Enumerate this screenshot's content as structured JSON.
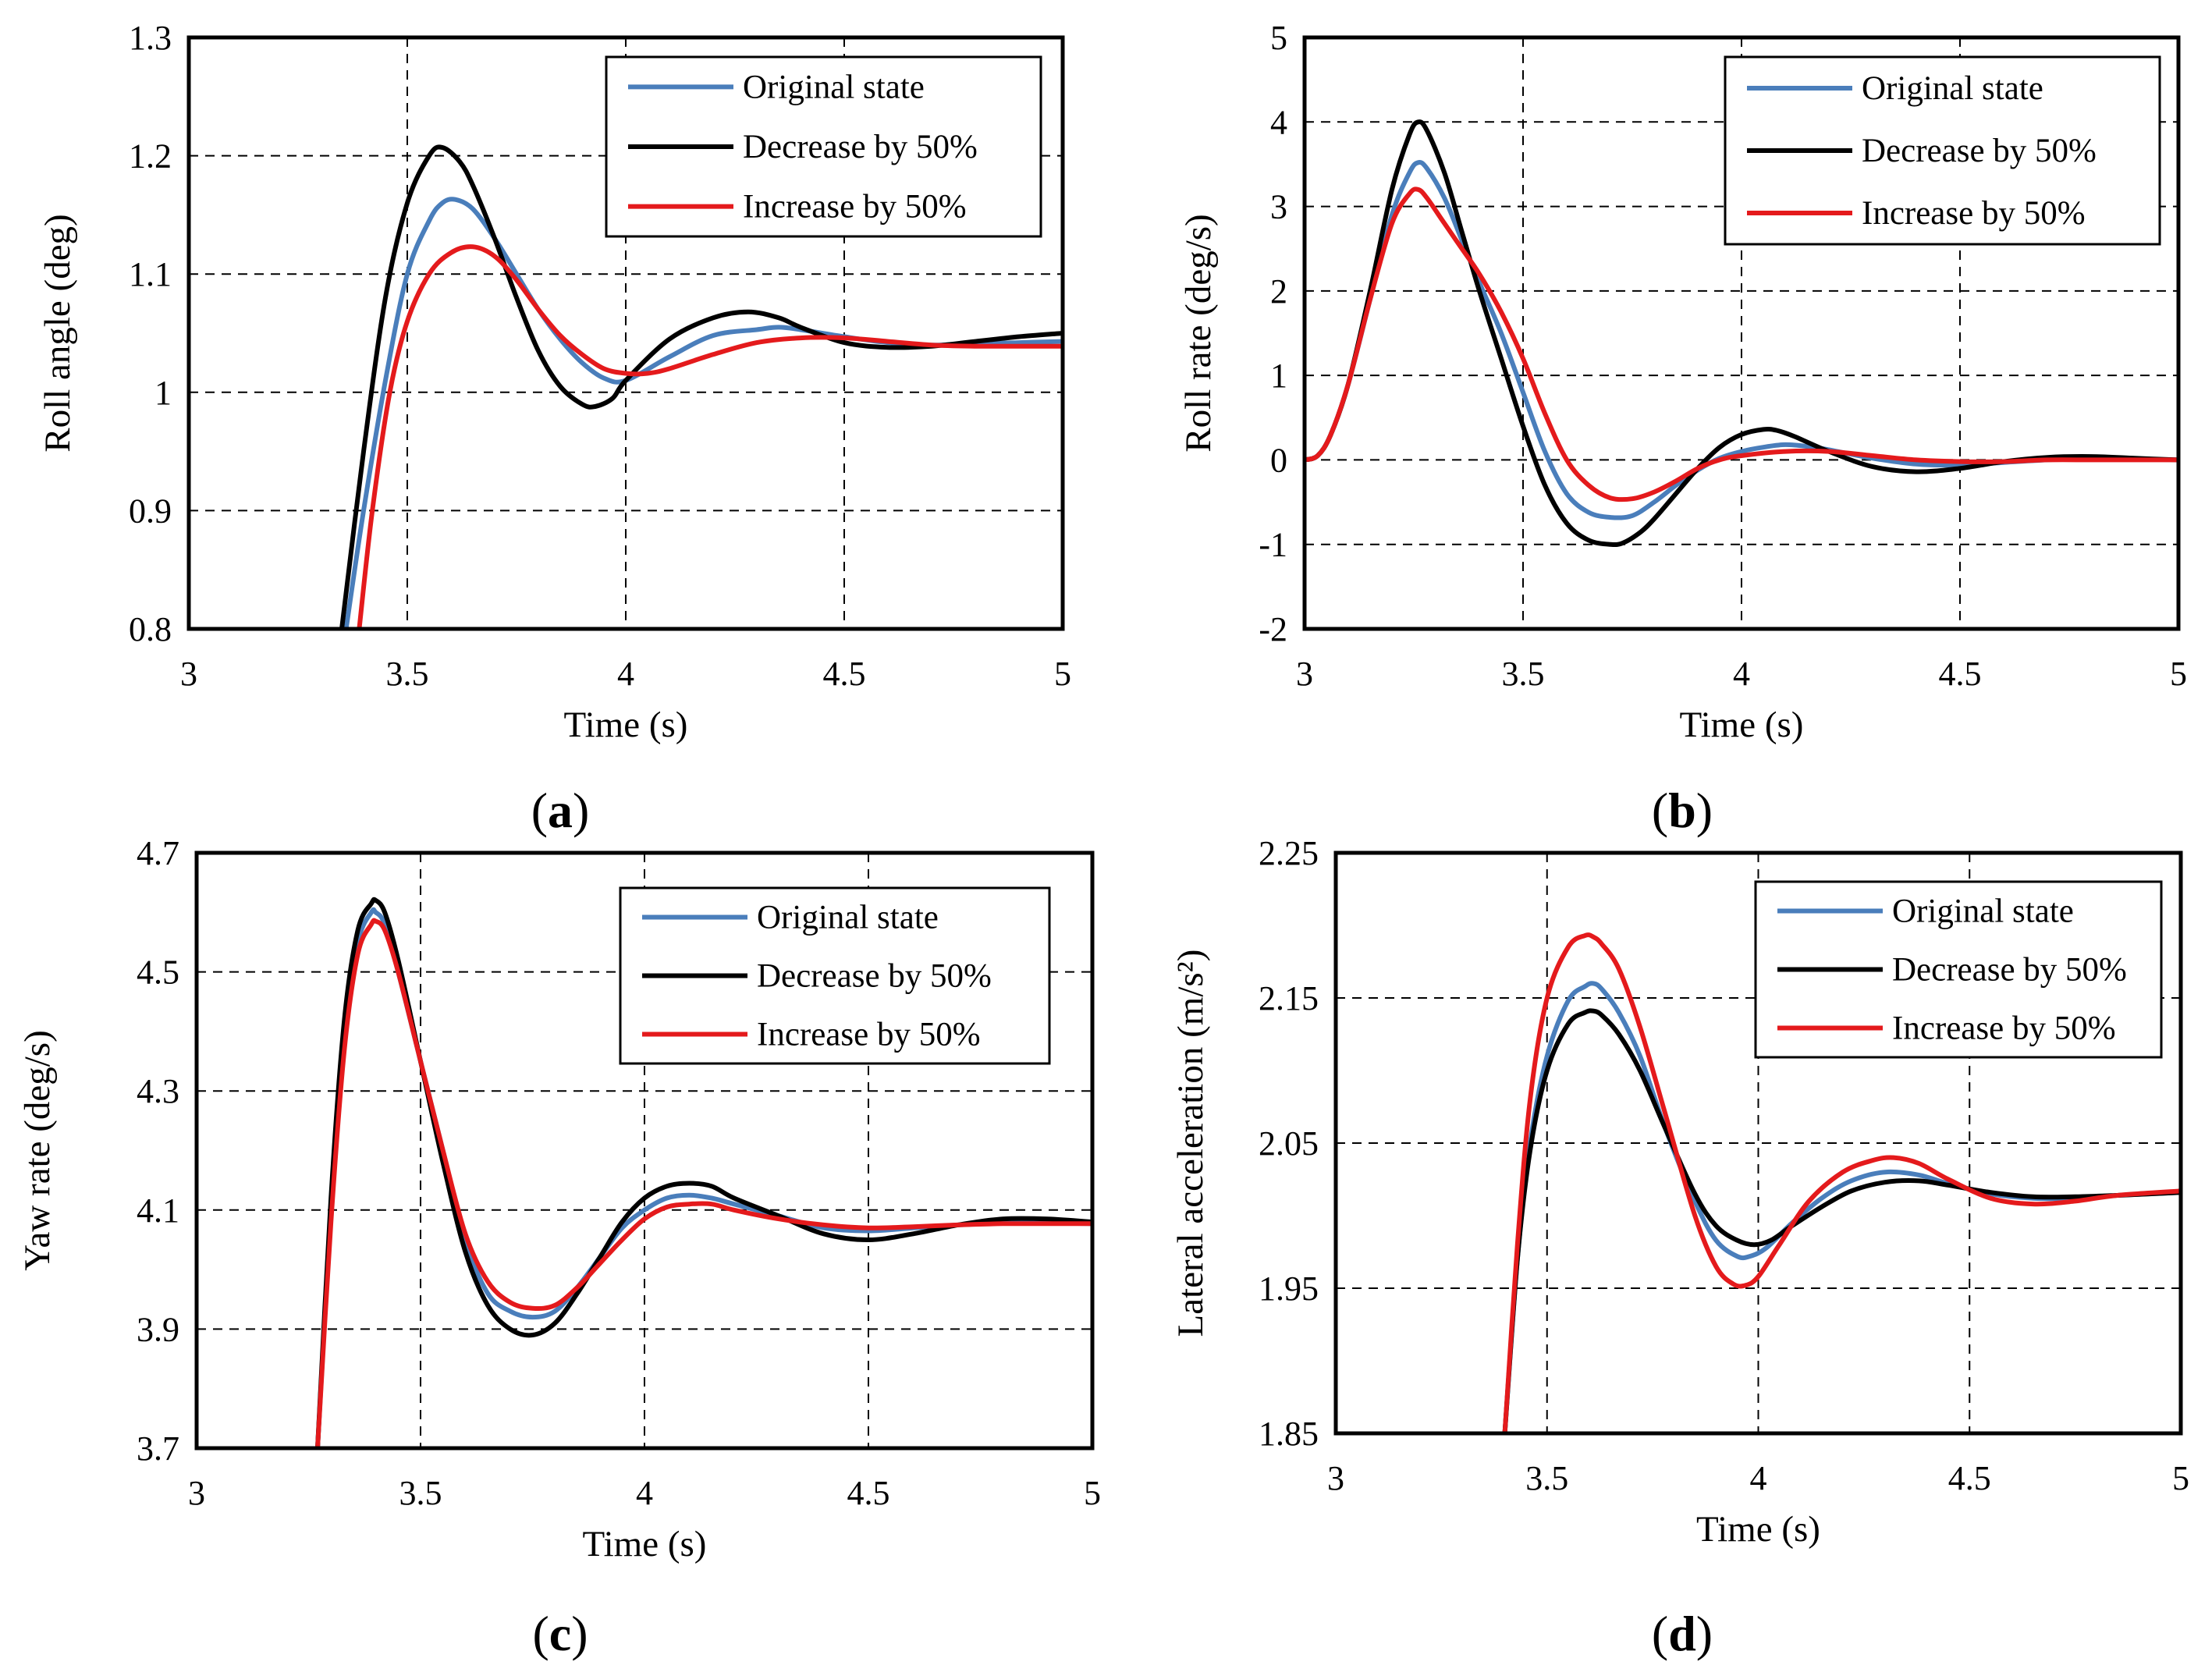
{
  "chart_data": [
    {
      "type": "line",
      "panel_label": "a",
      "xlabel": "Time (s)",
      "ylabel": "Roll angle (deg)",
      "xlim": [
        3,
        5
      ],
      "ylim": [
        0.8,
        1.3
      ],
      "xticks": [
        "3",
        "3.5",
        "4",
        "4.5",
        "5"
      ],
      "yticks": [
        "0.8",
        "0.9",
        "1",
        "1.1",
        "1.2",
        "1.3"
      ],
      "grid": true,
      "legend_position": "top-right",
      "series": [
        {
          "name": "Original state",
          "color": "#4A7EBB",
          "x": [
            3.36,
            3.4,
            3.45,
            3.5,
            3.55,
            3.58,
            3.61,
            3.65,
            3.7,
            3.75,
            3.8,
            3.85,
            3.9,
            3.95,
            4.0,
            4.1,
            4.2,
            4.3,
            4.35,
            4.4,
            4.5,
            4.6,
            4.7,
            4.8,
            4.9,
            5.0
          ],
          "y": [
            0.8,
            0.9,
            1.01,
            1.1,
            1.145,
            1.16,
            1.163,
            1.155,
            1.13,
            1.1,
            1.07,
            1.045,
            1.025,
            1.012,
            1.01,
            1.03,
            1.048,
            1.053,
            1.055,
            1.053,
            1.047,
            1.042,
            1.04,
            1.041,
            1.042,
            1.043
          ]
        },
        {
          "name": "Decrease by 50%",
          "color": "#000000",
          "x": [
            3.35,
            3.4,
            3.45,
            3.5,
            3.55,
            3.58,
            3.62,
            3.65,
            3.7,
            3.75,
            3.8,
            3.85,
            3.9,
            3.93,
            3.97,
            4.0,
            4.1,
            4.2,
            4.28,
            4.35,
            4.4,
            4.5,
            4.6,
            4.7,
            4.8,
            4.9,
            5.0
          ],
          "y": [
            0.8,
            0.95,
            1.08,
            1.16,
            1.2,
            1.207,
            1.195,
            1.175,
            1.13,
            1.08,
            1.035,
            1.005,
            0.99,
            0.988,
            0.995,
            1.01,
            1.045,
            1.063,
            1.068,
            1.063,
            1.055,
            1.042,
            1.038,
            1.039,
            1.043,
            1.047,
            1.05
          ]
        },
        {
          "name": "Increase by 50%",
          "color": "#E41A1C",
          "x": [
            3.39,
            3.42,
            3.46,
            3.5,
            3.55,
            3.6,
            3.65,
            3.7,
            3.75,
            3.8,
            3.85,
            3.9,
            3.95,
            4.0,
            4.05,
            4.1,
            4.2,
            4.3,
            4.4,
            4.5,
            4.6,
            4.7,
            4.8,
            4.9,
            5.0
          ],
          "y": [
            0.8,
            0.9,
            1.0,
            1.06,
            1.1,
            1.118,
            1.123,
            1.115,
            1.095,
            1.07,
            1.048,
            1.032,
            1.02,
            1.016,
            1.016,
            1.02,
            1.032,
            1.042,
            1.046,
            1.046,
            1.043,
            1.04,
            1.039,
            1.039,
            1.039
          ]
        }
      ]
    },
    {
      "type": "line",
      "panel_label": "b",
      "xlabel": "Time (s)",
      "ylabel": "Roll rate (deg/s)",
      "xlim": [
        3,
        5
      ],
      "ylim": [
        -2,
        5
      ],
      "xticks": [
        "3",
        "3.5",
        "4",
        "4.5",
        "5"
      ],
      "yticks": [
        "-2",
        "-1",
        "0",
        "1",
        "2",
        "3",
        "4",
        "5"
      ],
      "grid": true,
      "legend_position": "top-right",
      "series": [
        {
          "name": "Original state",
          "color": "#4A7EBB",
          "x": [
            3.0,
            3.03,
            3.06,
            3.1,
            3.15,
            3.2,
            3.24,
            3.26,
            3.28,
            3.32,
            3.36,
            3.4,
            3.45,
            3.5,
            3.55,
            3.6,
            3.65,
            3.7,
            3.75,
            3.8,
            3.85,
            3.9,
            3.95,
            4.0,
            4.05,
            4.1,
            4.15,
            4.2,
            4.3,
            4.4,
            4.5,
            4.6,
            4.7,
            4.8,
            4.9,
            5.0
          ],
          "y": [
            0.0,
            0.05,
            0.3,
            0.9,
            1.9,
            2.9,
            3.4,
            3.52,
            3.45,
            3.1,
            2.6,
            2.1,
            1.5,
            0.8,
            0.1,
            -0.4,
            -0.62,
            -0.68,
            -0.66,
            -0.5,
            -0.3,
            -0.12,
            0.02,
            0.1,
            0.15,
            0.18,
            0.16,
            0.12,
            0.02,
            -0.05,
            -0.06,
            -0.03,
            0.0,
            0.02,
            0.01,
            0.0
          ]
        },
        {
          "name": "Decrease by 50%",
          "color": "#000000",
          "x": [
            3.0,
            3.03,
            3.06,
            3.1,
            3.15,
            3.2,
            3.24,
            3.26,
            3.28,
            3.32,
            3.36,
            3.4,
            3.45,
            3.5,
            3.55,
            3.6,
            3.65,
            3.7,
            3.73,
            3.77,
            3.8,
            3.85,
            3.9,
            3.95,
            4.0,
            4.05,
            4.08,
            4.12,
            4.2,
            4.3,
            4.4,
            4.5,
            4.6,
            4.7,
            4.8,
            4.9,
            5.0
          ],
          "y": [
            0.0,
            0.05,
            0.3,
            0.9,
            2.0,
            3.2,
            3.85,
            4.0,
            3.9,
            3.4,
            2.7,
            2.0,
            1.2,
            0.4,
            -0.3,
            -0.75,
            -0.95,
            -1.0,
            -0.98,
            -0.85,
            -0.7,
            -0.4,
            -0.1,
            0.15,
            0.3,
            0.36,
            0.35,
            0.28,
            0.1,
            -0.08,
            -0.14,
            -0.1,
            -0.02,
            0.03,
            0.04,
            0.02,
            0.0
          ]
        },
        {
          "name": "Increase by 50%",
          "color": "#E41A1C",
          "x": [
            3.0,
            3.03,
            3.06,
            3.1,
            3.15,
            3.2,
            3.24,
            3.26,
            3.28,
            3.32,
            3.36,
            3.4,
            3.45,
            3.5,
            3.55,
            3.6,
            3.65,
            3.7,
            3.75,
            3.8,
            3.85,
            3.9,
            3.95,
            4.0,
            4.1,
            4.2,
            4.3,
            4.4,
            4.5,
            4.6,
            4.7,
            4.8,
            4.9,
            5.0
          ],
          "y": [
            0.0,
            0.05,
            0.3,
            0.9,
            1.9,
            2.8,
            3.15,
            3.2,
            3.1,
            2.8,
            2.5,
            2.2,
            1.75,
            1.2,
            0.55,
            0.0,
            -0.3,
            -0.45,
            -0.46,
            -0.38,
            -0.25,
            -0.1,
            0.0,
            0.05,
            0.1,
            0.1,
            0.05,
            0.0,
            -0.02,
            -0.02,
            0.0,
            0.0,
            0.0,
            0.0
          ]
        }
      ]
    },
    {
      "type": "line",
      "panel_label": "c",
      "xlabel": "Time (s)",
      "ylabel": "Yaw rate (deg/s)",
      "xlim": [
        3,
        5
      ],
      "ylim": [
        3.7,
        4.7
      ],
      "xticks": [
        "3",
        "3.5",
        "4",
        "4.5",
        "5"
      ],
      "yticks": [
        "3.7",
        "3.9",
        "4.1",
        "4.3",
        "4.5",
        "4.7"
      ],
      "grid": true,
      "legend_position": "top-right",
      "series": [
        {
          "name": "Original state",
          "color": "#4A7EBB",
          "x": [
            3.27,
            3.3,
            3.33,
            3.36,
            3.39,
            3.4,
            3.42,
            3.45,
            3.5,
            3.55,
            3.6,
            3.65,
            3.7,
            3.75,
            3.8,
            3.85,
            3.9,
            3.95,
            4.0,
            4.05,
            4.1,
            4.15,
            4.2,
            4.3,
            4.4,
            4.5,
            4.6,
            4.7,
            4.8,
            4.9,
            5.0
          ],
          "y": [
            3.7,
            4.1,
            4.4,
            4.55,
            4.6,
            4.6,
            4.58,
            4.5,
            4.35,
            4.2,
            4.05,
            3.96,
            3.93,
            3.92,
            3.93,
            3.97,
            4.02,
            4.07,
            4.1,
            4.12,
            4.125,
            4.12,
            4.11,
            4.09,
            4.07,
            4.065,
            4.07,
            4.075,
            4.078,
            4.078,
            4.077
          ]
        },
        {
          "name": "Decrease by 50%",
          "color": "#000000",
          "x": [
            3.27,
            3.3,
            3.33,
            3.36,
            3.39,
            3.4,
            3.42,
            3.45,
            3.5,
            3.55,
            3.6,
            3.65,
            3.7,
            3.75,
            3.8,
            3.85,
            3.9,
            3.95,
            4.0,
            4.05,
            4.1,
            4.15,
            4.2,
            4.3,
            4.4,
            4.5,
            4.6,
            4.7,
            4.8,
            4.9,
            5.0
          ],
          "y": [
            3.7,
            4.12,
            4.42,
            4.57,
            4.615,
            4.62,
            4.6,
            4.52,
            4.35,
            4.18,
            4.03,
            3.94,
            3.9,
            3.89,
            3.91,
            3.96,
            4.02,
            4.08,
            4.12,
            4.14,
            4.145,
            4.14,
            4.12,
            4.09,
            4.06,
            4.05,
            4.06,
            4.075,
            4.085,
            4.085,
            4.08
          ]
        },
        {
          "name": "Increase by 50%",
          "color": "#E41A1C",
          "x": [
            3.27,
            3.3,
            3.33,
            3.36,
            3.39,
            3.4,
            3.42,
            3.45,
            3.5,
            3.55,
            3.6,
            3.65,
            3.7,
            3.75,
            3.8,
            3.85,
            3.9,
            3.95,
            4.0,
            4.05,
            4.1,
            4.15,
            4.2,
            4.3,
            4.4,
            4.5,
            4.6,
            4.7,
            4.8,
            4.9,
            5.0
          ],
          "y": [
            3.7,
            4.08,
            4.37,
            4.53,
            4.58,
            4.585,
            4.57,
            4.5,
            4.35,
            4.2,
            4.06,
            3.98,
            3.945,
            3.935,
            3.94,
            3.97,
            4.01,
            4.05,
            4.085,
            4.105,
            4.11,
            4.11,
            4.1,
            4.085,
            4.075,
            4.07,
            4.072,
            4.075,
            4.077,
            4.077,
            4.077
          ]
        }
      ]
    },
    {
      "type": "line",
      "panel_label": "d",
      "xlabel": "Time (s)",
      "ylabel": "Lateral acceleration (m/s²)",
      "xlim": [
        3,
        5
      ],
      "ylim": [
        1.85,
        2.25
      ],
      "xticks": [
        "3",
        "3.5",
        "4",
        "4.5",
        "5"
      ],
      "yticks": [
        "1.85",
        "1.95",
        "2.05",
        "2.15",
        "2.25"
      ],
      "grid": true,
      "legend_position": "top-right",
      "series": [
        {
          "name": "Original state",
          "color": "#4A7EBB",
          "x": [
            3.4,
            3.43,
            3.46,
            3.5,
            3.55,
            3.59,
            3.61,
            3.63,
            3.67,
            3.72,
            3.78,
            3.85,
            3.9,
            3.95,
            3.98,
            4.02,
            4.08,
            4.15,
            4.22,
            4.3,
            4.38,
            4.45,
            4.55,
            4.65,
            4.75,
            4.85,
            5.0
          ],
          "y": [
            1.85,
            1.97,
            2.05,
            2.11,
            2.148,
            2.158,
            2.16,
            2.156,
            2.14,
            2.11,
            2.06,
            2.01,
            1.983,
            1.972,
            1.972,
            1.978,
            1.995,
            2.012,
            2.024,
            2.03,
            2.028,
            2.022,
            2.015,
            2.012,
            2.012,
            2.014,
            2.016
          ]
        },
        {
          "name": "Decrease by 50%",
          "color": "#000000",
          "x": [
            3.4,
            3.43,
            3.46,
            3.5,
            3.55,
            3.59,
            3.61,
            3.63,
            3.67,
            3.72,
            3.78,
            3.85,
            3.9,
            3.95,
            3.99,
            4.03,
            4.08,
            4.15,
            4.22,
            4.3,
            4.38,
            4.45,
            4.55,
            4.65,
            4.75,
            4.85,
            5.0
          ],
          "y": [
            1.85,
            1.97,
            2.045,
            2.1,
            2.132,
            2.14,
            2.141,
            2.138,
            2.125,
            2.1,
            2.06,
            2.015,
            1.993,
            1.983,
            1.98,
            1.983,
            1.993,
            2.006,
            2.017,
            2.023,
            2.024,
            2.021,
            2.016,
            2.013,
            2.013,
            2.014,
            2.016
          ]
        },
        {
          "name": "Increase by 50%",
          "color": "#E41A1C",
          "x": [
            3.4,
            3.43,
            3.46,
            3.5,
            3.55,
            3.59,
            3.61,
            3.63,
            3.67,
            3.72,
            3.78,
            3.85,
            3.9,
            3.94,
            3.97,
            4.0,
            4.05,
            4.12,
            4.2,
            4.27,
            4.32,
            4.38,
            4.45,
            4.55,
            4.65,
            4.75,
            4.85,
            5.0
          ],
          "y": [
            1.85,
            1.98,
            2.08,
            2.15,
            2.185,
            2.193,
            2.192,
            2.187,
            2.17,
            2.13,
            2.07,
            2.0,
            1.965,
            1.953,
            1.952,
            1.958,
            1.98,
            2.01,
            2.03,
            2.038,
            2.04,
            2.036,
            2.025,
            2.012,
            2.008,
            2.01,
            2.014,
            2.017
          ]
        }
      ]
    }
  ]
}
